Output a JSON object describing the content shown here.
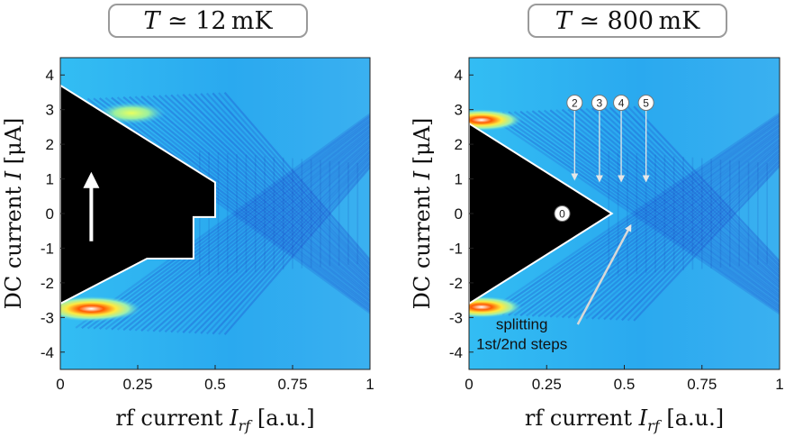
{
  "chart_data": [
    {
      "type": "heatmap",
      "title_symbol": "T",
      "title_relation": "≃",
      "title_value": "12",
      "title_unit": "mK",
      "ylabel_text": "DC current",
      "ylabel_symbol": "I",
      "ylabel_unit": "[μA]",
      "xlabel_text": "rf current",
      "xlabel_symbol": "I",
      "xlabel_subscript": "rf",
      "xlabel_unit": "[a.u.]",
      "xlim": [
        0,
        1
      ],
      "ylim": [
        -4.5,
        4.5
      ],
      "xticks": [
        0,
        0.25,
        0.5,
        0.75,
        1
      ],
      "xtick_labels": [
        "0",
        "0.25",
        "0.5",
        "0.75",
        "1"
      ],
      "yticks": [
        4,
        3,
        2,
        1,
        0,
        -1,
        -2,
        -3,
        -4
      ],
      "ytick_labels": [
        "4",
        "3",
        "2",
        "1",
        "0",
        "-1",
        "-2",
        "-3",
        "-4"
      ],
      "zero_voltage_region": [
        [
          0,
          3.7
        ],
        [
          0.5,
          0.9
        ],
        [
          0.5,
          -0.1
        ],
        [
          0.43,
          -0.1
        ],
        [
          0.43,
          -1.3
        ],
        [
          0.28,
          -1.3
        ],
        [
          0,
          -2.6
        ]
      ],
      "hysteresis_arrow": {
        "x": 0.1,
        "y_from": -0.8,
        "y_to": 1.1
      },
      "colormap": [
        "#00008f",
        "#0060ff",
        "#22b8ff",
        "#aaf0b0",
        "#ffff40",
        "#ff6a00",
        "#ffffff"
      ]
    },
    {
      "type": "heatmap",
      "title_symbol": "T",
      "title_relation": "≃",
      "title_value": "800",
      "title_unit": "mK",
      "ylabel_text": "DC current",
      "ylabel_symbol": "I",
      "ylabel_unit": "[μA]",
      "xlabel_text": "rf current",
      "xlabel_symbol": "I",
      "xlabel_subscript": "rf",
      "xlabel_unit": "[a.u.]",
      "xlim": [
        0,
        1
      ],
      "ylim": [
        -4.5,
        4.5
      ],
      "xticks": [
        0,
        0.25,
        0.5,
        0.75,
        1
      ],
      "xtick_labels": [
        "0",
        "0.25",
        "0.5",
        "0.75",
        "1"
      ],
      "yticks": [
        4,
        3,
        2,
        1,
        0,
        -1,
        -2,
        -3,
        -4
      ],
      "ytick_labels": [
        "4",
        "3",
        "2",
        "1",
        "0",
        "-1",
        "-2",
        "-3",
        "-4"
      ],
      "zero_voltage_region": [
        [
          0,
          2.6
        ],
        [
          0.46,
          0
        ],
        [
          0,
          -2.6
        ]
      ],
      "step_markers": [
        {
          "label": "0",
          "x": 0.3,
          "y": 0.0
        },
        {
          "label": "2",
          "x": 0.34,
          "y": 3.2,
          "arrow_to_y": 1.0
        },
        {
          "label": "3",
          "x": 0.42,
          "y": 3.2,
          "arrow_to_y": 0.95
        },
        {
          "label": "4",
          "x": 0.49,
          "y": 3.2,
          "arrow_to_y": 0.95
        },
        {
          "label": "5",
          "x": 0.57,
          "y": 3.2,
          "arrow_to_y": 0.95
        }
      ],
      "annotation": {
        "line1": "splitting",
        "line2": "1st/2nd steps",
        "x": 0.17,
        "y": -3.6,
        "arrow_from": [
          0.35,
          -3.2
        ],
        "arrow_to": [
          0.52,
          -0.35
        ]
      },
      "colormap": [
        "#00008f",
        "#0060ff",
        "#22b8ff",
        "#aaf0b0",
        "#ffff40",
        "#ff6a00",
        "#ffffff"
      ]
    }
  ]
}
